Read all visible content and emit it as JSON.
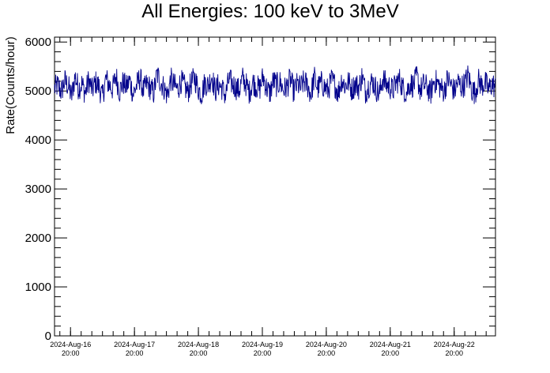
{
  "chart_data": {
    "type": "line",
    "title": "All Energies:  100 keV to 3MeV",
    "xlabel": "",
    "ylabel": "Rate(Counts/hour)",
    "ylim": [
      0,
      6100
    ],
    "yticks": [
      0,
      1000,
      2000,
      3000,
      4000,
      5000,
      6000
    ],
    "xlim": [
      "2024-Aug-16 14:00",
      "2024-Aug-23 11:30"
    ],
    "xticks": [
      {
        "date": "2024-Aug-16",
        "time": "20:00"
      },
      {
        "date": "2024-Aug-17",
        "time": "20:00"
      },
      {
        "date": "2024-Aug-18",
        "time": "20:00"
      },
      {
        "date": "2024-Aug-19",
        "time": "20:00"
      },
      {
        "date": "2024-Aug-20",
        "time": "20:00"
      },
      {
        "date": "2024-Aug-21",
        "time": "20:00"
      },
      {
        "date": "2024-Aug-22",
        "time": "20:00"
      }
    ],
    "grid": false,
    "series": [
      {
        "color": "#00008b",
        "x_start": "2024-Aug-16 14:00",
        "x_end": "2024-Aug-23 11:30",
        "mean": 5080,
        "noise_range": [
          4420,
          5800
        ],
        "values": [
          5050,
          5120,
          4980,
          5210,
          5100,
          4890,
          5300,
          5060,
          5150,
          4950,
          5230,
          5010,
          5180,
          5090,
          4870,
          5250,
          5130,
          5040,
          5310,
          4990,
          5170,
          5080,
          5220,
          4930,
          5110,
          5280,
          5000,
          5140,
          5060,
          4960,
          5350,
          5190,
          5070,
          4910,
          5240,
          5120,
          5030,
          5200,
          5090,
          4980,
          5160,
          5270,
          5050,
          4940,
          5180,
          5110,
          5320,
          5000,
          5130,
          5060,
          4900,
          5230,
          5150,
          5080,
          5010,
          5260,
          5140,
          4970,
          5190,
          5100,
          5040,
          5300,
          5070,
          4950,
          5210,
          5120,
          5180,
          5020,
          5090,
          5250,
          4990,
          5140,
          5060,
          5200,
          5110,
          4930,
          5280,
          5050,
          5170,
          5080,
          5010,
          5220,
          5130,
          4960,
          5240,
          5100,
          5190,
          5030,
          5150,
          5070,
          5310,
          4980,
          5120,
          5200,
          5060,
          4920,
          5260,
          5140,
          5090,
          5010,
          5180,
          5230,
          5050,
          4970,
          5160,
          5110,
          5290,
          5020,
          5130,
          5080,
          4940,
          5210,
          5170,
          5060,
          5000,
          5250,
          5120,
          4990,
          5190,
          5090,
          5140,
          5330,
          5040,
          4960,
          5220,
          5110,
          5170,
          5030,
          5150,
          5070
        ]
      }
    ]
  }
}
